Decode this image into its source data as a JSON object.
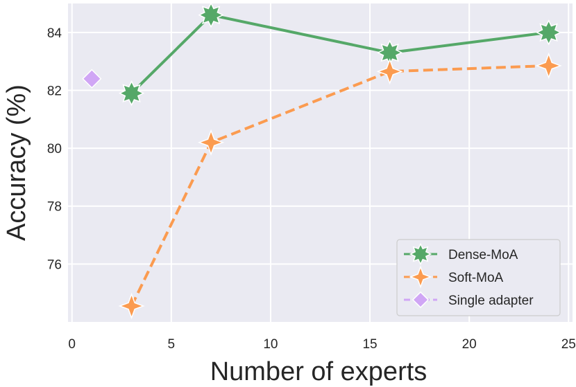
{
  "chart_data": {
    "type": "line",
    "title": "",
    "xlabel": "Number of experts",
    "ylabel": "Accuracy (%)",
    "xlim": [
      -0.2,
      25.2
    ],
    "ylim": [
      74.0,
      85.0
    ],
    "xticks": [
      0,
      5,
      10,
      15,
      20,
      25
    ],
    "yticks": [
      76,
      78,
      80,
      82,
      84
    ],
    "grid": true,
    "legend_position": "bottom-right",
    "series": [
      {
        "name": "Dense-MoA",
        "x": [
          3,
          7,
          16,
          24
        ],
        "y": [
          81.9,
          84.6,
          83.3,
          84.0
        ],
        "color": "#55a868",
        "linestyle": "solid",
        "marker": "star"
      },
      {
        "name": "Soft-MoA",
        "x": [
          3,
          7,
          16,
          24
        ],
        "y": [
          74.55,
          80.2,
          82.65,
          82.85
        ],
        "color": "#fb9b50",
        "linestyle": "dashed",
        "marker": "four-point-star"
      },
      {
        "name": "Single adapter",
        "x": [
          1
        ],
        "y": [
          82.4
        ],
        "color": "#d0a6f5",
        "linestyle": "dashed",
        "marker": "diamond"
      }
    ]
  }
}
